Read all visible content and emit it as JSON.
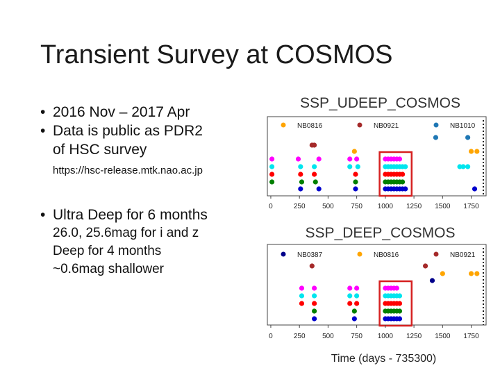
{
  "slide": {
    "title": "Transient Survey at COSMOS",
    "bullets": [
      "2016 Nov – 2017 Apr",
      "Data is public as PDR2",
      "of HSC survey",
      "https://hsc-release.mtk.nao.ac.jp",
      "Ultra Deep for 6 months",
      "26.0, 25.6mag for i and z",
      "Deep for 4 months",
      "~0.6mag shallower"
    ]
  },
  "chart_data": [
    {
      "type": "scatter",
      "title": "SSP_UDEEP_COSMOS",
      "xlabel": "",
      "xlim": [
        -30,
        1880
      ],
      "xticks": [
        0,
        250,
        500,
        750,
        1000,
        1250,
        1500,
        1750
      ],
      "legend": [
        "NB0816",
        "NB0921",
        "NB1010"
      ],
      "legend_colors": [
        "#ffa500",
        "#a52a2a",
        "#1f77b4"
      ],
      "highlight_range": [
        950,
        1230
      ],
      "series": [
        {
          "name": "blue",
          "color": "#0000cd",
          "row": 0,
          "x": [
            260,
            420,
            740,
            1000,
            1025,
            1050,
            1075,
            1100,
            1125,
            1150,
            1175,
            1780
          ]
        },
        {
          "name": "green",
          "color": "#008000",
          "row": 1,
          "x": [
            10,
            270,
            390,
            740,
            1000,
            1025,
            1050,
            1075,
            1100,
            1125,
            1150
          ]
        },
        {
          "name": "red",
          "color": "#ff0000",
          "row": 2,
          "x": [
            10,
            260,
            380,
            740,
            1000,
            1025,
            1050,
            1075,
            1100,
            1125,
            1150
          ]
        },
        {
          "name": "cyan",
          "color": "#00e5ee",
          "row": 3,
          "x": [
            10,
            260,
            380,
            690,
            760,
            1000,
            1025,
            1050,
            1075,
            1100,
            1125,
            1150,
            1175,
            1650,
            1680,
            1720
          ]
        },
        {
          "name": "magenta",
          "color": "#ff00ff",
          "row": 4,
          "x": [
            10,
            240,
            420,
            690,
            750,
            1000,
            1025,
            1050,
            1075,
            1100,
            1125
          ]
        },
        {
          "name": "NB0816",
          "color": "#ffa500",
          "row": 5,
          "x": [
            730,
            1750,
            1800
          ]
        },
        {
          "name": "NB0921",
          "color": "#a52a2a",
          "row": 6,
          "x": [
            360,
            380
          ]
        },
        {
          "name": "NB1010",
          "color": "#1f77b4",
          "row": 7,
          "x": [
            1440,
            1720
          ]
        }
      ]
    },
    {
      "type": "scatter",
      "title": "SSP_DEEP_COSMOS",
      "xlabel": "Time (days - 735300)",
      "xlim": [
        -30,
        1880
      ],
      "xticks": [
        0,
        250,
        500,
        750,
        1000,
        1250,
        1500,
        1750
      ],
      "legend": [
        "NB0387",
        "NB0816",
        "NB0921"
      ],
      "legend_colors": [
        "#00008b",
        "#ffa500",
        "#a52a2a"
      ],
      "highlight_range": [
        950,
        1230
      ],
      "series": [
        {
          "name": "blue",
          "color": "#0000cd",
          "row": 0,
          "x": [
            380,
            730,
            1000,
            1025,
            1050,
            1075,
            1100,
            1125
          ]
        },
        {
          "name": "green",
          "color": "#008000",
          "row": 1,
          "x": [
            380,
            730,
            1000,
            1025,
            1050,
            1075,
            1100,
            1125
          ]
        },
        {
          "name": "red",
          "color": "#ff0000",
          "row": 2,
          "x": [
            270,
            380,
            690,
            750,
            1000,
            1025,
            1050,
            1075,
            1100,
            1125
          ]
        },
        {
          "name": "cyan",
          "color": "#00e5ee",
          "row": 3,
          "x": [
            270,
            380,
            690,
            750,
            1000,
            1025,
            1050,
            1075,
            1100,
            1125
          ]
        },
        {
          "name": "magenta",
          "color": "#ff00ff",
          "row": 4,
          "x": [
            270,
            380,
            690,
            750,
            1000,
            1025,
            1050,
            1075,
            1100
          ]
        },
        {
          "name": "NB0387",
          "color": "#00008b",
          "row": 5,
          "x": [
            1410
          ]
        },
        {
          "name": "NB0816",
          "color": "#ffa500",
          "row": 6,
          "x": [
            1500,
            1750,
            1800
          ]
        },
        {
          "name": "NB0921",
          "color": "#a52a2a",
          "row": 7,
          "x": [
            360,
            1350
          ]
        }
      ]
    }
  ]
}
